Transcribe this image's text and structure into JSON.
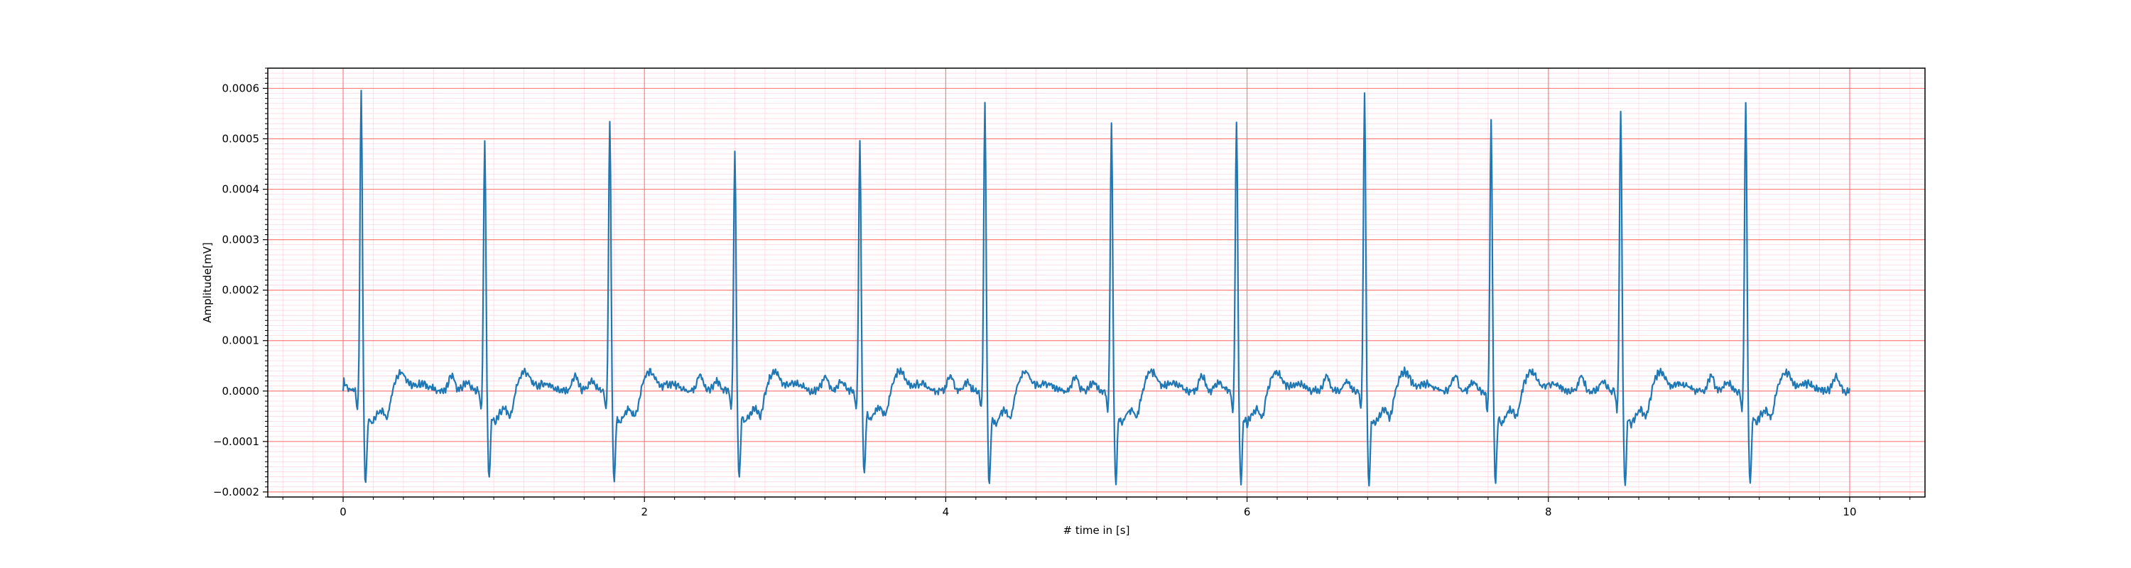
{
  "chart_data": {
    "type": "line",
    "title": "",
    "xlabel": "# time in [s]",
    "ylabel": "Amplitude[mV]",
    "xlim": [
      -0.5,
      10.5
    ],
    "ylim": [
      -0.00021,
      0.00064
    ],
    "x_ticks": [
      0,
      2,
      4,
      6,
      8,
      10
    ],
    "x_tick_labels": [
      "0",
      "2",
      "4",
      "6",
      "8",
      "10"
    ],
    "y_ticks": [
      -0.0002,
      -0.0001,
      0.0,
      0.0001,
      0.0002,
      0.0003,
      0.0004,
      0.0005,
      0.0006
    ],
    "y_tick_labels": [
      "−0.0002",
      "−0.0001",
      "0.0000",
      "0.0001",
      "0.0002",
      "0.0003",
      "0.0004",
      "0.0005",
      "0.0006"
    ],
    "grid": "on (major red, minor pink)",
    "colors": {
      "line": "#1f77b4",
      "major_grid": "#ff7f7f",
      "minor_grid": "#ffd6e0",
      "axes": "#000000"
    },
    "sampling_rate_hz": 200,
    "duration_s": 10,
    "series": [
      {
        "peaks": [
          {
            "t": 0.12,
            "r": 0.0006,
            "s": -0.000172
          },
          {
            "t": 0.94,
            "r": 0.0005,
            "s": -0.00016
          },
          {
            "t": 1.77,
            "r": 0.00054,
            "s": -0.000165
          },
          {
            "t": 2.6,
            "r": 0.00048,
            "s": -0.000158
          },
          {
            "t": 3.43,
            "r": 0.0005,
            "s": -0.00015
          },
          {
            "t": 4.26,
            "r": 0.00057,
            "s": -0.00017
          },
          {
            "t": 5.1,
            "r": 0.00053,
            "s": -0.000168
          },
          {
            "t": 5.93,
            "r": 0.00054,
            "s": -0.000168
          },
          {
            "t": 6.78,
            "r": 0.00059,
            "s": -0.000172
          },
          {
            "t": 7.62,
            "r": 0.00054,
            "s": -0.000168
          },
          {
            "t": 8.48,
            "r": 0.00056,
            "s": -0.000175
          },
          {
            "t": 9.31,
            "r": 0.00058,
            "s": -0.00017
          }
        ]
      }
    ]
  }
}
